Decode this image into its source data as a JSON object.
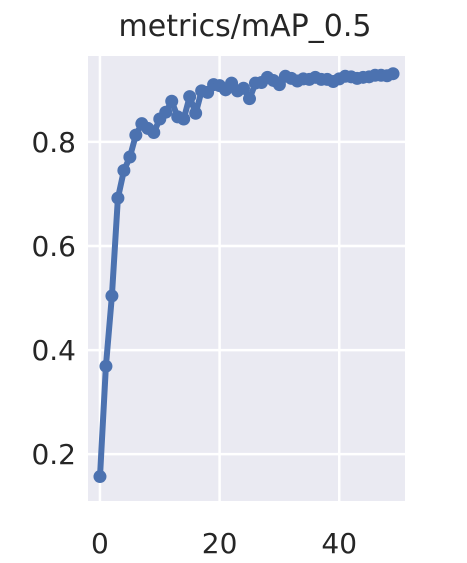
{
  "chart_data": {
    "type": "line",
    "title": "metrics/mAP_0.5",
    "xlabel": "",
    "ylabel": "",
    "xlim": [
      -2,
      51
    ],
    "ylim": [
      0.11,
      0.965
    ],
    "x_ticks": [
      0,
      20,
      40
    ],
    "y_ticks": [
      0.2,
      0.4,
      0.6,
      0.8
    ],
    "x_tick_labels": [
      "0",
      "20",
      "40"
    ],
    "y_tick_labels": [
      "0.2",
      "0.4",
      "0.6",
      "0.8"
    ],
    "grid": true,
    "legend": "none",
    "colors": {
      "background": "#eaeaf2",
      "grid": "#ffffff",
      "series": "#4c72b0"
    },
    "series": [
      {
        "x": [
          0,
          1,
          2,
          3,
          4,
          5,
          6,
          7,
          8,
          9,
          10,
          11,
          12,
          13,
          14,
          15,
          16,
          17,
          18,
          19,
          20,
          21,
          22,
          23,
          24,
          25,
          26,
          27,
          28,
          29,
          30,
          31,
          32,
          33,
          34,
          35,
          36,
          37,
          38,
          39,
          40,
          41,
          42,
          43,
          44,
          45,
          46,
          47,
          48,
          49
        ],
        "values": [
          0.157,
          0.369,
          0.504,
          0.692,
          0.745,
          0.771,
          0.813,
          0.835,
          0.826,
          0.818,
          0.844,
          0.857,
          0.878,
          0.848,
          0.844,
          0.887,
          0.855,
          0.898,
          0.895,
          0.91,
          0.908,
          0.9,
          0.913,
          0.898,
          0.903,
          0.883,
          0.913,
          0.914,
          0.924,
          0.918,
          0.91,
          0.926,
          0.922,
          0.917,
          0.921,
          0.92,
          0.924,
          0.92,
          0.92,
          0.916,
          0.921,
          0.926,
          0.925,
          0.922,
          0.924,
          0.925,
          0.928,
          0.928,
          0.927,
          0.931
        ]
      }
    ]
  }
}
